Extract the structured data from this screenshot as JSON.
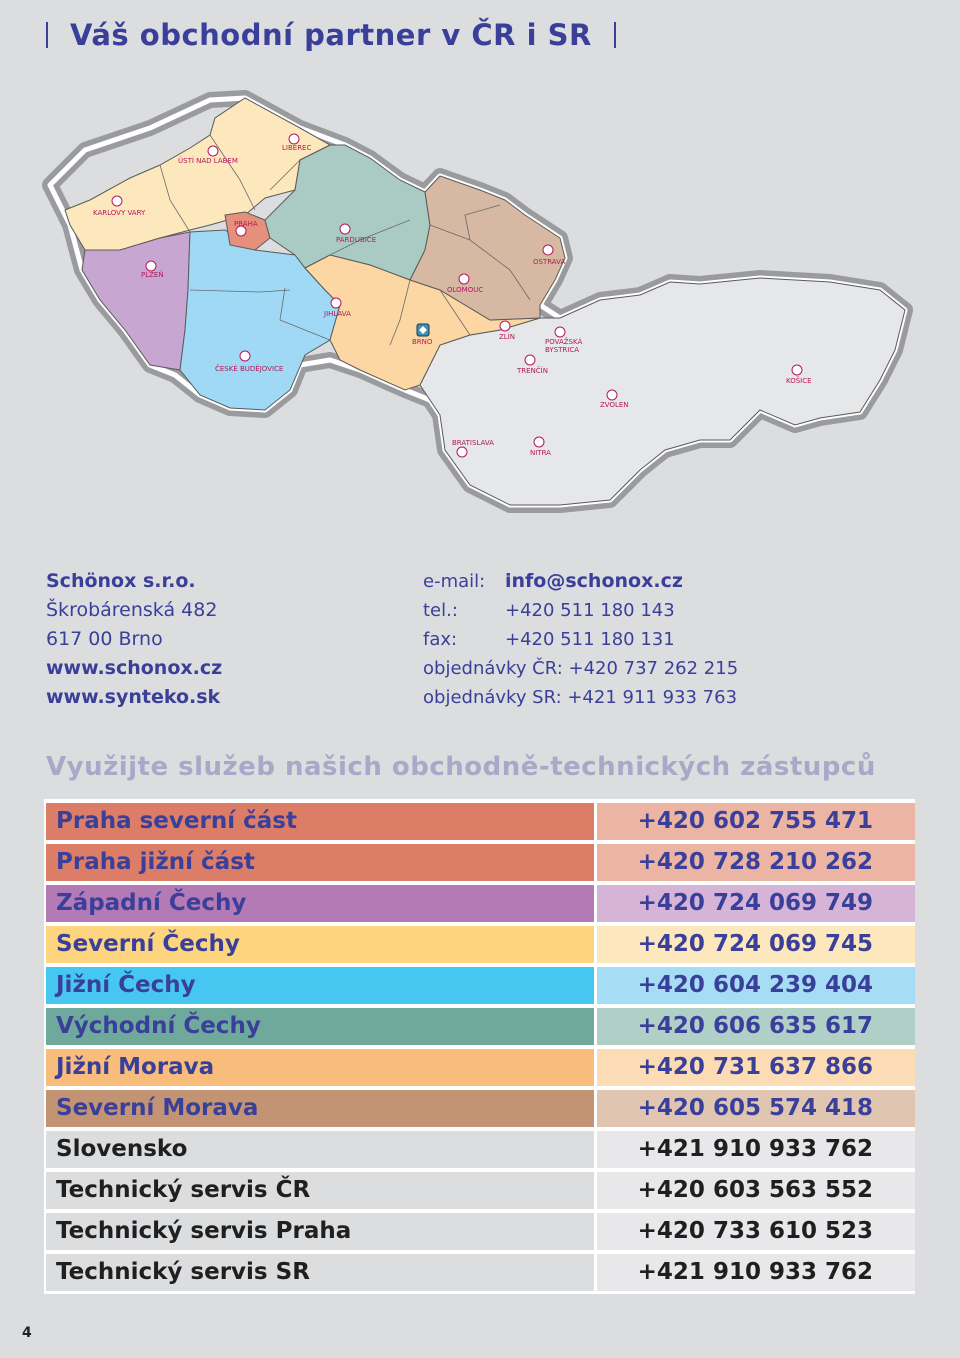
{
  "header": {
    "title": "Váš obchodní partner v ČR i SR"
  },
  "map": {
    "cities": [
      {
        "name": "ÚSTÍ NAD LABEM"
      },
      {
        "name": "LIBEREC"
      },
      {
        "name": "KARLOVY VARY"
      },
      {
        "name": "PRAHA"
      },
      {
        "name": "PARDUBICE"
      },
      {
        "name": "OSTRAVA"
      },
      {
        "name": "PLZEŇ"
      },
      {
        "name": "OLOMOUC"
      },
      {
        "name": "JIHLAVA"
      },
      {
        "name": "BRNO"
      },
      {
        "name": "ZLÍN"
      },
      {
        "name": "POVAŽSKÁ"
      },
      {
        "name": "BYSTRICA"
      },
      {
        "name": "ČESKÉ BUDĚJOVICE"
      },
      {
        "name": "TRENČÍN"
      },
      {
        "name": "KOŠICE"
      },
      {
        "name": "ZVOLEN"
      },
      {
        "name": "BRATISLAVA"
      },
      {
        "name": "NITRA"
      }
    ]
  },
  "contact": {
    "company": "Schönox s.r.o.",
    "street": "Škrobárenská 482",
    "city": "617 00  Brno",
    "web1": "www.schonox.cz",
    "web2": "www.synteko.sk",
    "email_label": "e-mail:",
    "email": "info@schonox.cz",
    "tel_label": "tel.:",
    "tel": "+420 511 180 143",
    "fax_label": "fax:",
    "fax": "+420 511 180 131",
    "orders_cr": "objednávky ČR: +420 737 262 215",
    "orders_sr": "objednávky SR: +421 911 933 763"
  },
  "subtitle": "Využijte služeb našich obchodně-technických zástupců",
  "reps": [
    {
      "name": "Praha severní část",
      "phone": "+420 602 755 471",
      "bg": "#dc7e67",
      "bg2": "#ebb4a3",
      "fg": "#3a3f9a"
    },
    {
      "name": "Praha jižní část",
      "phone": "+420 728 210 262",
      "bg": "#dc7e67",
      "bg2": "#ebb4a3",
      "fg": "#3a3f9a"
    },
    {
      "name": "Západní Čechy",
      "phone": "+420 724 069 749",
      "bg": "#b37ab6",
      "bg2": "#d6b4d8",
      "fg": "#3a3f9a"
    },
    {
      "name": "Severní Čechy",
      "phone": "+420 724 069 745",
      "bg": "#fdd57e",
      "bg2": "#fde8bd",
      "fg": "#3a3f9a"
    },
    {
      "name": "Jižní Čechy",
      "phone": "+420 604 239 404",
      "bg": "#46c7f2",
      "bg2": "#a5ddf5",
      "fg": "#3a3f9a"
    },
    {
      "name": "Východní Čechy",
      "phone": "+420 606 635 617",
      "bg": "#6ea99b",
      "bg2": "#b0cfc7",
      "fg": "#3a3f9a"
    },
    {
      "name": "Jižní Morava",
      "phone": "+420 731 637 866",
      "bg": "#f8bd7a",
      "bg2": "#fbdcb4",
      "fg": "#3a3f9a"
    },
    {
      "name": "Severní Morava",
      "phone": "+420 605 574 418",
      "bg": "#c39473",
      "bg2": "#e0c6b1",
      "fg": "#3a3f9a"
    },
    {
      "name": "Slovensko",
      "phone": "+421 910 933 762",
      "bg": "#dcdddf",
      "bg2": "#e8e8ea",
      "fg": "#1f1f1f"
    },
    {
      "name": "Technický servis ČR",
      "phone": "+420 603 563 552",
      "bg": "#dcdddf",
      "bg2": "#e8e8ea",
      "fg": "#1f1f1f"
    },
    {
      "name": "Technický servis Praha",
      "phone": "+420 733 610 523",
      "bg": "#dcdddf",
      "bg2": "#e8e8ea",
      "fg": "#1f1f1f"
    },
    {
      "name": "Technický servis SR",
      "phone": "+421 910 933 762",
      "bg": "#dcdddf",
      "bg2": "#e8e8ea",
      "fg": "#1f1f1f"
    }
  ],
  "page_number": "4"
}
